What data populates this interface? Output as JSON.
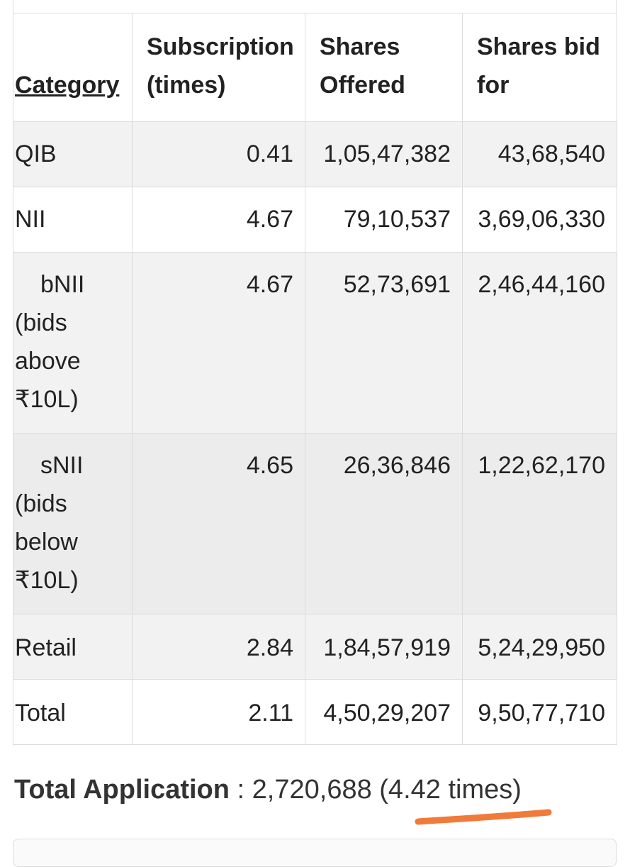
{
  "table": {
    "headers": {
      "category": "Category",
      "subscription": "Subscription (times)",
      "shares_offered": "Shares Offered",
      "shares_bid": "Shares bid for"
    },
    "rows": [
      {
        "category": "QIB",
        "subscription": "0.41",
        "shares_offered": "1,05,47,382",
        "shares_bid": "43,68,540"
      },
      {
        "category": "NII",
        "subscription": "4.67",
        "shares_offered": "79,10,537",
        "shares_bid": "3,69,06,330"
      },
      {
        "category_name": "bNII",
        "category_detail": "(bids above ₹10L)",
        "subscription": "4.67",
        "shares_offered": "52,73,691",
        "shares_bid": "2,46,44,160"
      },
      {
        "category_name": "sNII",
        "category_detail": "(bids below ₹10L)",
        "subscription": "4.65",
        "shares_offered": "26,36,846",
        "shares_bid": "1,22,62,170"
      },
      {
        "category": "Retail",
        "subscription": "2.84",
        "shares_offered": "1,84,57,919",
        "shares_bid": "5,24,29,950"
      },
      {
        "category": "Total",
        "subscription": "2.11",
        "shares_offered": "4,50,29,207",
        "shares_bid": "9,50,77,710"
      }
    ]
  },
  "total_application": {
    "label": "Total Application",
    "separator": " : ",
    "value": "2,720,688 (4.42 times)"
  },
  "colors": {
    "highlight_underline": "#f07a3a",
    "border": "#dcdcdc",
    "shaded_row": "#f2f2f2"
  }
}
